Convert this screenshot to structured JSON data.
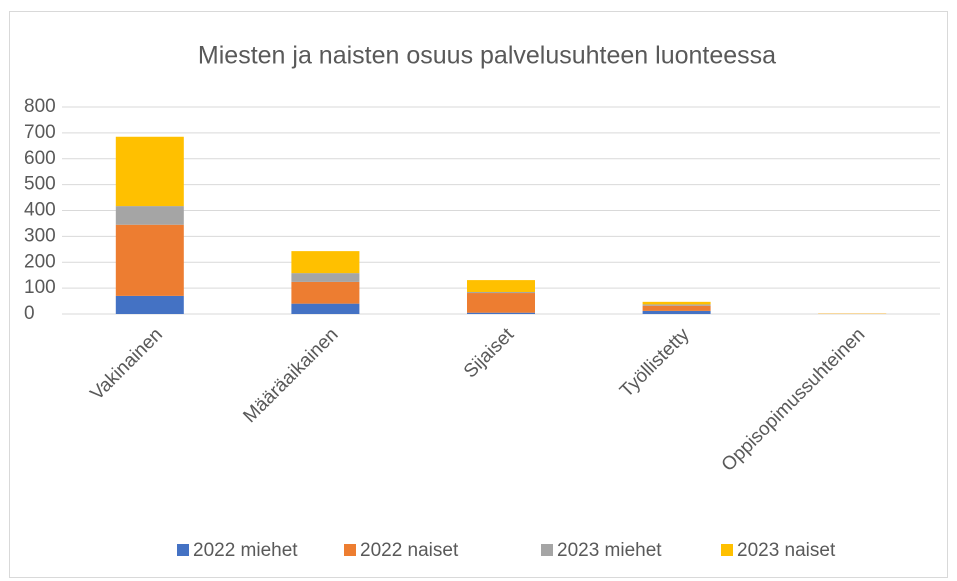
{
  "chart_data": {
    "type": "stacked_bar",
    "title": "Miesten ja naisten osuus palvelusuhteen luonteessa",
    "categories": [
      "Vakinainen",
      "Määräaikainen",
      "Sijaiset",
      "Työllistetty",
      "Oppisopimussuhteinen"
    ],
    "series": [
      {
        "name": "2022 miehet",
        "color": "#4472c4",
        "values": [
          70,
          40,
          5,
          12,
          0
        ]
      },
      {
        "name": "2022 naiset",
        "color": "#ed7d31",
        "values": [
          275,
          84,
          76,
          20,
          1
        ]
      },
      {
        "name": "2023 miehet",
        "color": "#a5a5a5",
        "values": [
          72,
          34,
          4,
          5,
          0
        ]
      },
      {
        "name": "2023 naiset",
        "color": "#ffc000",
        "values": [
          268,
          85,
          46,
          10,
          1
        ]
      }
    ],
    "ylim": [
      0,
      800
    ],
    "yticks": [
      0,
      100,
      200,
      300,
      400,
      500,
      600,
      700,
      800
    ],
    "grid": true,
    "legend": "bottom"
  }
}
